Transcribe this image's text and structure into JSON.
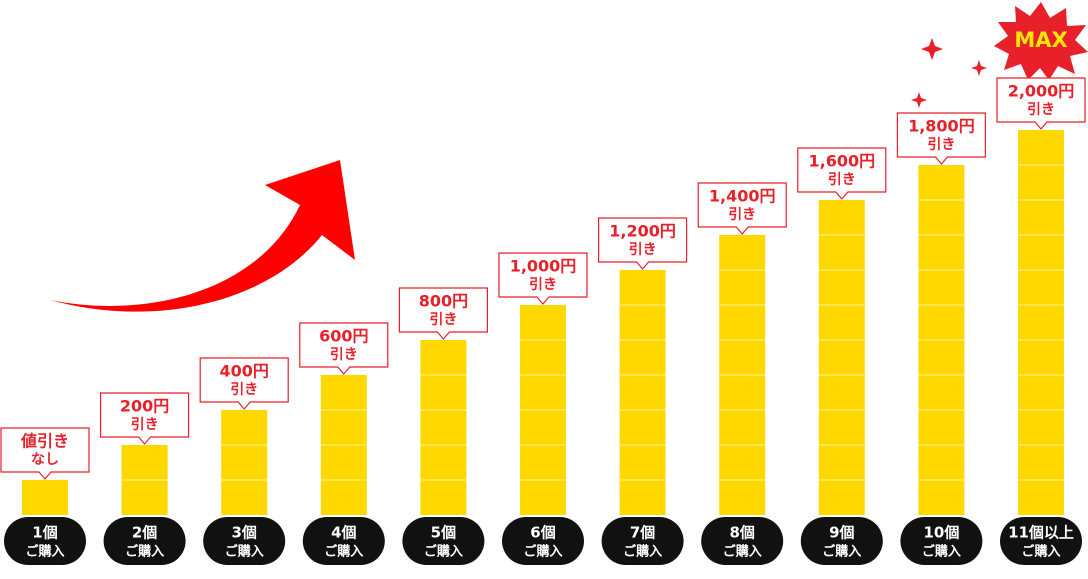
{
  "chart_data": {
    "type": "bar",
    "categories": [
      "1個",
      "2個",
      "3個",
      "4個",
      "5個",
      "6個",
      "7個",
      "8個",
      "9個",
      "10個",
      "11個以上"
    ],
    "category_suffix": "ご購入",
    "values": [
      0,
      200,
      400,
      600,
      800,
      1000,
      1200,
      1400,
      1600,
      1800,
      2000
    ],
    "value_labels": [
      [
        "値引き",
        "なし"
      ],
      [
        "200円",
        "引き"
      ],
      [
        "400円",
        "引き"
      ],
      [
        "600円",
        "引き"
      ],
      [
        "800円",
        "引き"
      ],
      [
        "1,000円",
        "引き"
      ],
      [
        "1,200円",
        "引き"
      ],
      [
        "1,400円",
        "引き"
      ],
      [
        "1,600円",
        "引き"
      ],
      [
        "1,800円",
        "引き"
      ],
      [
        "2,000円",
        "引き"
      ]
    ],
    "color": "#ffd800",
    "annotation": "MAX"
  }
}
